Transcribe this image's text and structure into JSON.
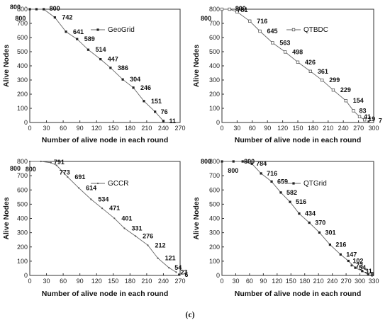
{
  "caption": "(c)",
  "chart_data": [
    {
      "type": "line",
      "xlabel": "Number of alive node in each round",
      "ylabel": "Alive Nodes",
      "xlim": [
        0,
        270
      ],
      "ylim": [
        0,
        800
      ],
      "xticks": [
        0,
        30,
        60,
        90,
        120,
        150,
        180,
        210,
        240,
        270
      ],
      "yticks": [
        0,
        100,
        200,
        300,
        400,
        500,
        600,
        700,
        800
      ],
      "legend_position": "top-right",
      "marker": "filled-square",
      "series": [
        {
          "name": "GeoGrid",
          "x": [
            0,
            12,
            25,
            45,
            65,
            85,
            105,
            127,
            145,
            167,
            186,
            205,
            225,
            240
          ],
          "y": [
            800,
            800,
            800,
            742,
            641,
            589,
            514,
            447,
            386,
            304,
            246,
            151,
            76,
            11
          ],
          "labels": [
            "800",
            "800",
            "800",
            "742",
            "641",
            "589",
            "514",
            "447",
            "386",
            "304",
            "246",
            "151",
            "76",
            "11"
          ]
        }
      ]
    },
    {
      "type": "line",
      "xlabel": "Number of alive node in each round",
      "ylabel": "Alive Nodes",
      "xlim": [
        0,
        300
      ],
      "ylim": [
        0,
        800
      ],
      "xticks": [
        0,
        30,
        60,
        90,
        120,
        150,
        180,
        210,
        240,
        270,
        300
      ],
      "yticks": [
        0,
        100,
        200,
        300,
        400,
        500,
        600,
        700,
        800
      ],
      "legend_position": "top-right",
      "marker": "open-square",
      "series": [
        {
          "name": "QTBDC",
          "x": [
            0,
            15,
            30,
            55,
            75,
            100,
            125,
            150,
            175,
            198,
            220,
            245,
            260,
            272,
            282
          ],
          "y": [
            800,
            800,
            781,
            716,
            645,
            563,
            498,
            426,
            361,
            299,
            229,
            154,
            83,
            41,
            19
          ],
          "labels": [
            "800",
            "800",
            "781",
            "716",
            "645",
            "563",
            "498",
            "426",
            "361",
            "299",
            "229",
            "154",
            "83",
            "41",
            "19"
          ]
        }
      ],
      "annotations": [
        "7"
      ]
    },
    {
      "type": "line",
      "xlabel": "Number of alive node in each round",
      "ylabel": "Alive Nodes",
      "xlim": [
        0,
        270
      ],
      "ylim": [
        0,
        800
      ],
      "xticks": [
        0,
        30,
        60,
        90,
        120,
        150,
        180,
        210,
        240,
        270
      ],
      "yticks": [
        0,
        100,
        200,
        300,
        400,
        500,
        600,
        700,
        800
      ],
      "legend_position": "top-right",
      "marker": "small-dot",
      "series": [
        {
          "name": "GCCR",
          "x": [
            0,
            20,
            38,
            48,
            68,
            88,
            110,
            130,
            152,
            170,
            190,
            212,
            230,
            250,
            263
          ],
          "y": [
            800,
            800,
            791,
            773,
            691,
            614,
            534,
            471,
            401,
            331,
            276,
            212,
            121,
            54,
            23
          ],
          "labels": [
            "800",
            "800",
            "791",
            "773",
            "691",
            "614",
            "534",
            "471",
            "401",
            "331",
            "276",
            "212",
            "121",
            "54",
            "23"
          ]
        }
      ],
      "annotations": [
        "6"
      ]
    },
    {
      "type": "line",
      "xlabel": "Number of alive node in each round",
      "ylabel": "Alive Nodes",
      "xlim": [
        0,
        330
      ],
      "ylim": [
        0,
        800
      ],
      "xticks": [
        0,
        30,
        60,
        90,
        120,
        150,
        180,
        210,
        240,
        270,
        300,
        330
      ],
      "yticks": [
        0,
        100,
        200,
        300,
        400,
        500,
        600,
        700,
        800
      ],
      "legend_position": "top-right",
      "marker": "filled-square",
      "series": [
        {
          "name": "QTGrid",
          "x": [
            0,
            25,
            45,
            65,
            85,
            108,
            128,
            148,
            168,
            190,
            212,
            235,
            258,
            275,
            290,
            305,
            318
          ],
          "y": [
            800,
            800,
            800,
            784,
            716,
            659,
            582,
            516,
            434,
            370,
            301,
            216,
            147,
            102,
            54,
            31,
            8
          ],
          "labels": [
            "800",
            "800",
            "800",
            "784",
            "716",
            "659",
            "582",
            "516",
            "434",
            "370",
            "301",
            "216",
            "147",
            "102",
            "54",
            "31",
            "8"
          ]
        }
      ],
      "annotations": [
        "73"
      ]
    }
  ]
}
